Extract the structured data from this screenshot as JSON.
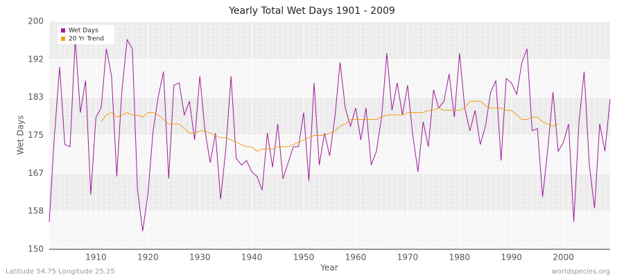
{
  "chart_data": {
    "type": "line",
    "title": "Yearly Total Wet Days 1901 - 2009",
    "x_label": "Year",
    "y_label": "Wet Days",
    "footer_left": "Latitude 54.75 Longitude 25.25",
    "footer_right": "worldspecies.org",
    "legend": "top-left",
    "grid": true,
    "xlim": [
      1901,
      2009
    ],
    "ylim": [
      150,
      200
    ],
    "xticks": [
      1910,
      1920,
      1930,
      1940,
      1950,
      1960,
      1970,
      1980,
      1990,
      2000
    ],
    "yticks": [
      150,
      {
        "value": 158.333,
        "label": "158"
      },
      {
        "value": 166.667,
        "label": "167"
      },
      175,
      {
        "value": 183.333,
        "label": "183"
      },
      {
        "value": 191.667,
        "label": "192"
      },
      200
    ],
    "x": [
      1901,
      1902,
      1903,
      1904,
      1905,
      1906,
      1907,
      1908,
      1909,
      1910,
      1911,
      1912,
      1913,
      1914,
      1915,
      1916,
      1917,
      1918,
      1919,
      1920,
      1921,
      1922,
      1923,
      1924,
      1925,
      1926,
      1927,
      1928,
      1929,
      1930,
      1931,
      1932,
      1933,
      1934,
      1935,
      1936,
      1937,
      1938,
      1939,
      1940,
      1941,
      1942,
      1943,
      1944,
      1945,
      1946,
      1947,
      1948,
      1949,
      1950,
      1951,
      1952,
      1953,
      1954,
      1955,
      1956,
      1957,
      1958,
      1959,
      1960,
      1961,
      1962,
      1963,
      1964,
      1965,
      1966,
      1967,
      1968,
      1969,
      1970,
      1971,
      1972,
      1973,
      1974,
      1975,
      1976,
      1977,
      1978,
      1979,
      1980,
      1981,
      1982,
      1983,
      1984,
      1985,
      1986,
      1987,
      1988,
      1989,
      1990,
      1991,
      1992,
      1993,
      1994,
      1995,
      1996,
      1997,
      1998,
      1999,
      2000,
      2001,
      2002,
      2003,
      2004,
      2005,
      2006,
      2007,
      2008,
      2009
    ],
    "series": [
      {
        "name": "Wet Days",
        "color": "#9b1b9b",
        "values": [
          156,
          175,
          190,
          173,
          172.5,
          196,
          180,
          187,
          162,
          179,
          181,
          194,
          188,
          166,
          185,
          196,
          194,
          163,
          154,
          162,
          176,
          183.5,
          189,
          165.5,
          186,
          186.5,
          179.5,
          182.5,
          174,
          188,
          176,
          169,
          175.5,
          161,
          172,
          188,
          170,
          168.5,
          169.5,
          167,
          166,
          163,
          175.5,
          168,
          177.5,
          165.5,
          169,
          172.5,
          172.5,
          180,
          165,
          186.5,
          168.5,
          175.5,
          170.5,
          179,
          191,
          181,
          177,
          181,
          174,
          181,
          168.5,
          171.5,
          179,
          193,
          180.5,
          186.5,
          179.5,
          186,
          175,
          167,
          178,
          172.5,
          185,
          181,
          182.5,
          188.5,
          179,
          193,
          181,
          176,
          180.5,
          173,
          177,
          184.5,
          187,
          169.5,
          187.5,
          186.5,
          184,
          191,
          194,
          176,
          176.5,
          161.5,
          172,
          184.5,
          171.5,
          173.5,
          177.5,
          156,
          178,
          189,
          168.5,
          159,
          177.5,
          171.5,
          183
        ]
      },
      {
        "name": "20 Yr Trend",
        "color": "#f39c12",
        "values": [
          null,
          null,
          null,
          null,
          null,
          null,
          null,
          null,
          null,
          null,
          178,
          179.5,
          180,
          179,
          179.5,
          180,
          179.5,
          179.5,
          179,
          180,
          180,
          179.5,
          178.5,
          177.5,
          177.5,
          177.5,
          176.5,
          175.5,
          175.5,
          176,
          176,
          175.5,
          175,
          174.5,
          174.5,
          174,
          173.5,
          173,
          172.5,
          172.5,
          171.5,
          172,
          172,
          172,
          172.5,
          172.5,
          172.5,
          173,
          173.5,
          174,
          174.5,
          175,
          175,
          175,
          175.5,
          176,
          177,
          177.5,
          178.5,
          178.5,
          178.5,
          178.5,
          178.5,
          178.5,
          179,
          179.5,
          179.5,
          179.5,
          179.5,
          180,
          180,
          180,
          180,
          180.5,
          180.5,
          181,
          180.5,
          180.5,
          180.5,
          180.5,
          181,
          182.5,
          182.5,
          182.5,
          181.5,
          181,
          181,
          181,
          180.5,
          180.5,
          179.5,
          178.5,
          178.5,
          179,
          179,
          178,
          177.5,
          177,
          177.5,
          null,
          null,
          null,
          null,
          null,
          null,
          null,
          null,
          null,
          null
        ]
      }
    ]
  }
}
